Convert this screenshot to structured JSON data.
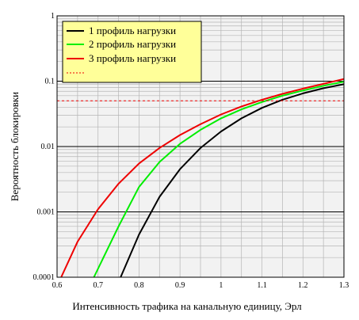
{
  "chart_data": {
    "type": "line",
    "xlabel": "Интенсивность трафика на канальную единицу, Эрл",
    "ylabel": "Вероятность блокировки",
    "x_scale": "linear",
    "y_scale": "log",
    "xlim": [
      0.6,
      1.3
    ],
    "ylim": [
      0.0001,
      1
    ],
    "x_ticks": [
      "0.6",
      "0.7",
      "0.8",
      "0.9",
      "1",
      "1.1",
      "1.2",
      "1.3"
    ],
    "y_ticks": [
      "0.0001",
      "0.001",
      "0.01",
      "0.1",
      "1"
    ],
    "grid": true,
    "legend_position": "top-left",
    "colors": {
      "series1": "#000000",
      "series2": "#00ee00",
      "series3": "#ee0000",
      "threshold": "#ee0000",
      "legend_bg": "#ffff99",
      "plot_bg": "#f2f2f2"
    },
    "series": [
      {
        "name": "1 профиль нагрузки",
        "color": "#000000",
        "x": [
          0.755,
          0.8,
          0.85,
          0.9,
          0.95,
          1.0,
          1.05,
          1.1,
          1.15,
          1.2,
          1.25,
          1.3
        ],
        "y": [
          0.0001,
          0.00045,
          0.0017,
          0.0045,
          0.0095,
          0.017,
          0.027,
          0.039,
          0.052,
          0.065,
          0.078,
          0.09
        ]
      },
      {
        "name": "2 профиль нагрузки",
        "color": "#00ee00",
        "x": [
          0.69,
          0.75,
          0.8,
          0.85,
          0.9,
          0.95,
          1.0,
          1.05,
          1.1,
          1.15,
          1.2,
          1.25,
          1.3
        ],
        "y": [
          0.0001,
          0.0006,
          0.0024,
          0.0058,
          0.011,
          0.018,
          0.027,
          0.037,
          0.048,
          0.06,
          0.072,
          0.085,
          0.098
        ]
      },
      {
        "name": "3 профиль нагрузки",
        "color": "#ee0000",
        "x": [
          0.61,
          0.65,
          0.7,
          0.75,
          0.8,
          0.85,
          0.9,
          0.95,
          1.0,
          1.05,
          1.1,
          1.15,
          1.2,
          1.25,
          1.3
        ],
        "y": [
          0.0001,
          0.00035,
          0.0011,
          0.0027,
          0.0055,
          0.0095,
          0.015,
          0.022,
          0.031,
          0.041,
          0.052,
          0.064,
          0.077,
          0.091,
          0.108
        ]
      },
      {
        "name": "",
        "color": "#ee0000",
        "style": "dashed",
        "x": [
          0.6,
          1.3
        ],
        "y": [
          0.05,
          0.05
        ]
      }
    ]
  }
}
